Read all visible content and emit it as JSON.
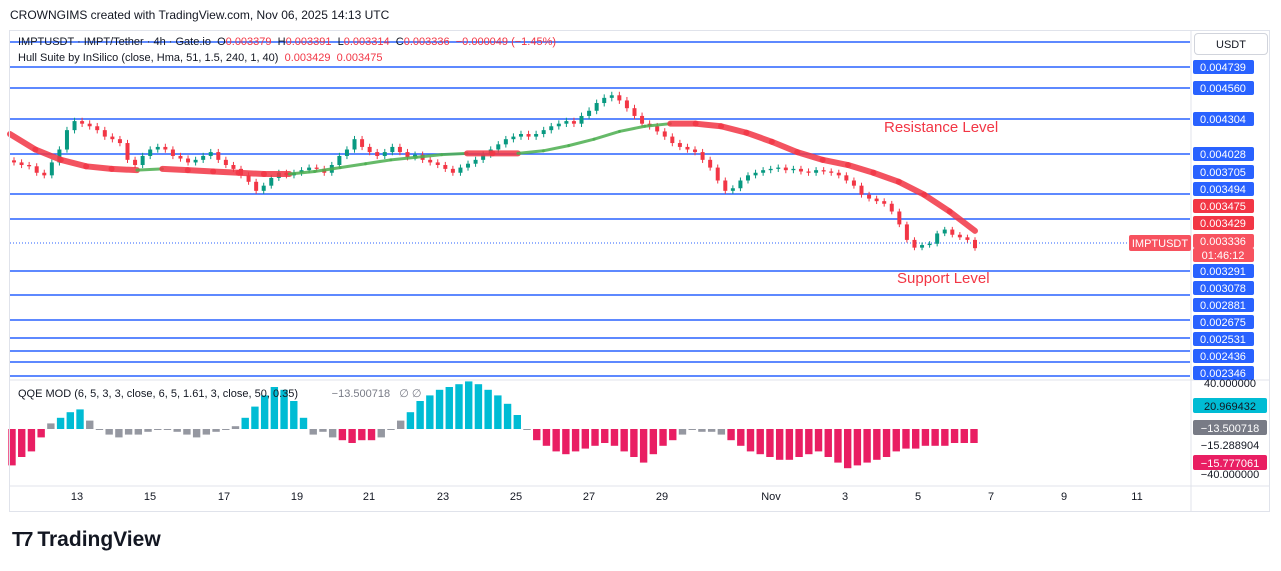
{
  "header": {
    "text": "CROWNGIMS created with TradingView.com, Nov 06, 2025 14:13 UTC"
  },
  "legend": {
    "symbol_line": "IMPTUSDT · IMPT/Tether · 4h · Gate.io",
    "ohlc": {
      "o_label": "O",
      "o": "0.003379",
      "h_label": "H",
      "h": "0.003391",
      "l_label": "L",
      "l": "0.003314",
      "c_label": "C",
      "c": "0.003336",
      "chg": "−0.000049 (−1.45%)"
    },
    "hull_line": "Hull Suite by InSilico (close, Hma, 51, 1.5, 240, 1, 40)",
    "hull_v1": "0.003429",
    "hull_v2": "0.003475",
    "qqe_line": "QQE MOD (6, 5, 3, 3, close, 6, 5, 1.61, 3, close, 50, 0.35)",
    "qqe_value": "−13.500718",
    "qqe_extra": "∅  ∅"
  },
  "currency": "USDT",
  "annotations": {
    "resistance": "Resistance Level",
    "support": "Support Level"
  },
  "price_labels": [
    {
      "text": "0.004739",
      "value": 0.004739,
      "bg": "#2962ff",
      "fg": "#ffffff"
    },
    {
      "text": "0.004560",
      "value": 0.00456,
      "bg": "#2962ff",
      "fg": "#ffffff"
    },
    {
      "text": "0.004304",
      "value": 0.004304,
      "bg": "#2962ff",
      "fg": "#ffffff"
    },
    {
      "text": "0.004028",
      "value": 0.004028,
      "bg": "#2962ff",
      "fg": "#ffffff"
    },
    {
      "text": "0.003705",
      "value": 0.003705,
      "bg": "#2962ff",
      "fg": "#ffffff"
    },
    {
      "text": "0.003494",
      "value": 0.003494,
      "bg": "#2962ff",
      "fg": "#ffffff"
    },
    {
      "text": "0.003475",
      "value": 0.003475,
      "bg": "#f23645",
      "fg": "#ffffff"
    },
    {
      "text": "0.003429",
      "value": 0.003429,
      "bg": "#f23645",
      "fg": "#ffffff"
    },
    {
      "text": "0.003336",
      "value": 0.003336,
      "bg": "#f7525f",
      "fg": "#ffffff"
    },
    {
      "text": "01:46:12",
      "value": 0.003336,
      "bg": "#f7525f",
      "fg": "#ffffff"
    },
    {
      "text": "0.003291",
      "value": 0.003291,
      "bg": "#2962ff",
      "fg": "#ffffff"
    },
    {
      "text": "0.003078",
      "value": 0.003078,
      "bg": "#2962ff",
      "fg": "#ffffff"
    },
    {
      "text": "0.002881",
      "value": 0.002881,
      "bg": "#2962ff",
      "fg": "#ffffff"
    },
    {
      "text": "0.002675",
      "value": 0.002675,
      "bg": "#2962ff",
      "fg": "#ffffff"
    },
    {
      "text": "0.002531",
      "value": 0.002531,
      "bg": "#2962ff",
      "fg": "#ffffff"
    },
    {
      "text": "0.002436",
      "value": 0.002436,
      "bg": "#2962ff",
      "fg": "#ffffff"
    },
    {
      "text": "0.002346",
      "value": 0.002346,
      "bg": "#2962ff",
      "fg": "#ffffff"
    }
  ],
  "symbol_tag": "IMPTUSDT",
  "osc_labels": [
    {
      "text": "40.000000",
      "bg": "#ffffff",
      "fg": "#131722"
    },
    {
      "text": "20.969432",
      "bg": "#00bcd4",
      "fg": "#131722"
    },
    {
      "text": "−13.500718",
      "bg": "#787b86",
      "fg": "#ffffff"
    },
    {
      "text": "−15.288904",
      "bg": "#ffffff",
      "fg": "#131722"
    },
    {
      "text": "−15.777061",
      "bg": "#e91e63",
      "fg": "#ffffff"
    },
    {
      "text": "−40.000000",
      "bg": "#ffffff",
      "fg": "#131722"
    }
  ],
  "brand": "TradingView",
  "colors": {
    "up": "#089981",
    "down": "#f23645",
    "level": "#2962ff",
    "hull_up": "#4caf50",
    "hull_down": "#f23645",
    "hist_up": "#00bcd4",
    "hist_down": "#e91e63",
    "hist_neutral": "#9598a1"
  },
  "chart_data": {
    "type": "candlestick",
    "timeframe": "4h",
    "ylim": [
      0.002346,
      0.004739
    ],
    "x_ticks": [
      "13",
      "15",
      "17",
      "19",
      "21",
      "23",
      "25",
      "27",
      "29",
      "Nov",
      "3",
      "5",
      "7",
      "9",
      "11"
    ],
    "horizontal_levels": [
      0.004739,
      0.00456,
      0.004304,
      0.004028,
      0.003494,
      0.003429,
      0.003291,
      0.003078,
      0.002881,
      0.002675,
      0.002531,
      0.002436,
      0.002346
    ],
    "last_close": 0.003336,
    "series_close": [
      0.004,
      0.00398,
      0.00397,
      0.00392,
      0.0039,
      0.004,
      0.0041,
      0.00425,
      0.00432,
      0.0043,
      0.00428,
      0.00425,
      0.0042,
      0.00418,
      0.00415,
      0.00402,
      0.00398,
      0.00405,
      0.0041,
      0.00412,
      0.0041,
      0.00405,
      0.00403,
      0.004,
      0.00402,
      0.00405,
      0.00408,
      0.00402,
      0.00398,
      0.00395,
      0.0039,
      0.00385,
      0.00378,
      0.00382,
      0.00388,
      0.00392,
      0.0039,
      0.00392,
      0.00394,
      0.00396,
      0.00395,
      0.00392,
      0.00398,
      0.00405,
      0.0041,
      0.00418,
      0.00412,
      0.00408,
      0.00405,
      0.00408,
      0.00412,
      0.00408,
      0.00404,
      0.00406,
      0.00402,
      0.004,
      0.00398,
      0.00395,
      0.00392,
      0.00396,
      0.00399,
      0.00402,
      0.00406,
      0.0041,
      0.00414,
      0.00418,
      0.0042,
      0.00422,
      0.0042,
      0.00422,
      0.00425,
      0.00428,
      0.0043,
      0.00432,
      0.0043,
      0.00436,
      0.0044,
      0.00446,
      0.0045,
      0.00452,
      0.00448,
      0.00442,
      0.00436,
      0.0043,
      0.00428,
      0.00424,
      0.0042,
      0.00415,
      0.00412,
      0.0041,
      0.00408,
      0.00402,
      0.00396,
      0.00386,
      0.00378,
      0.0038,
      0.00386,
      0.0039,
      0.00392,
      0.00394,
      0.00395,
      0.00396,
      0.00394,
      0.00395,
      0.00393,
      0.00392,
      0.00394,
      0.00393,
      0.00392,
      0.0039,
      0.00386,
      0.00382,
      0.00375,
      0.00372,
      0.0037,
      0.00368,
      0.00362,
      0.00352,
      0.0034,
      0.00334,
      0.00336,
      0.00337,
      0.00345,
      0.00348,
      0.00344,
      0.00342,
      0.0034,
      0.003336
    ],
    "hull_line": [
      0.00422,
      0.0041,
      0.00402,
      0.00397,
      0.00395,
      0.00394,
      0.00395,
      0.00394,
      0.00393,
      0.00392,
      0.00391,
      0.00391,
      0.00393,
      0.00396,
      0.00399,
      0.00402,
      0.00404,
      0.00406,
      0.00407,
      0.00407,
      0.00407,
      0.00409,
      0.00413,
      0.00418,
      0.00424,
      0.00428,
      0.0043,
      0.0043,
      0.00428,
      0.00423,
      0.00416,
      0.00408,
      0.00402,
      0.00398,
      0.00392,
      0.00385,
      0.00375,
      0.00362,
      0.00347
    ],
    "qqe_histogram": [
      -13,
      -10,
      -8,
      -3,
      2,
      4,
      6,
      7,
      3,
      0,
      -2,
      -3,
      -2,
      -2,
      -1,
      0,
      0,
      -1,
      -2,
      -3,
      -2,
      -1,
      0,
      1,
      4,
      8,
      12,
      15,
      14,
      10,
      4,
      -2,
      -1,
      -3,
      -4,
      -5,
      -4,
      -4,
      -3,
      0,
      3,
      6,
      10,
      12,
      14,
      15,
      16,
      17,
      16,
      14,
      12,
      9,
      5,
      0,
      -4,
      -6,
      -8,
      -9,
      -8,
      -7,
      -6,
      -5,
      -6,
      -8,
      -10,
      -12,
      -9,
      -6,
      -4,
      -2,
      0,
      -1,
      -1,
      -2,
      -4,
      -6,
      -8,
      -9,
      -10,
      -11,
      -11,
      -10,
      -9,
      -8,
      -10,
      -12,
      -14,
      -13,
      -12,
      -11,
      -10,
      -8,
      -7,
      -7,
      -6,
      -6,
      -6,
      -5,
      -5,
      -5
    ]
  }
}
